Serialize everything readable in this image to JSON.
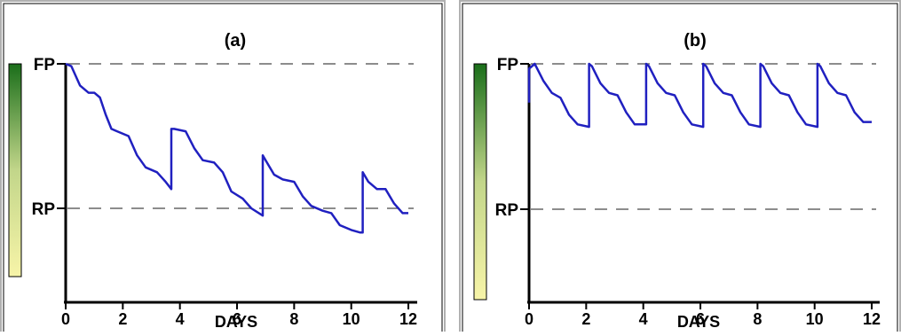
{
  "chart_data": [
    {
      "type": "line",
      "panel_label": "(a)",
      "xlabel": "DAYS",
      "x_ticks": [
        "0",
        "2",
        "4",
        "6",
        "8",
        "10",
        "12"
      ],
      "xlim": [
        0,
        12
      ],
      "ylim": [
        0,
        1.15
      ],
      "reference_lines": [
        {
          "label": "FP",
          "y": 1.0
        },
        {
          "label": "RP",
          "y": 0.4
        }
      ],
      "series": [
        {
          "color": "#2020c0",
          "x": [
            0,
            0.2,
            0.5,
            0.8,
            1.0,
            1.2,
            1.4,
            1.6,
            1.8,
            2.2,
            2.5,
            2.8,
            3.2,
            3.5,
            3.7,
            3.7,
            3.8,
            4.2,
            4.5,
            4.8,
            5.2,
            5.5,
            5.8,
            6.2,
            6.5,
            6.9,
            6.9,
            7.0,
            7.3,
            7.6,
            8.0,
            8.3,
            8.6,
            9.0,
            9.3,
            9.6,
            10.0,
            10.3,
            10.4,
            10.4,
            10.6,
            10.9,
            11.2,
            11.5,
            11.8,
            12.0
          ],
          "y": [
            1.0,
            0.99,
            0.91,
            0.88,
            0.88,
            0.86,
            0.79,
            0.73,
            0.72,
            0.7,
            0.62,
            0.57,
            0.55,
            0.51,
            0.48,
            0.73,
            0.73,
            0.72,
            0.65,
            0.6,
            0.59,
            0.55,
            0.47,
            0.44,
            0.4,
            0.37,
            0.62,
            0.6,
            0.54,
            0.52,
            0.51,
            0.45,
            0.41,
            0.39,
            0.38,
            0.33,
            0.31,
            0.3,
            0.3,
            0.55,
            0.51,
            0.48,
            0.48,
            0.42,
            0.38,
            0.38
          ]
        }
      ]
    },
    {
      "type": "line",
      "panel_label": "(b)",
      "xlabel": "DAYS",
      "x_ticks": [
        "0",
        "2",
        "4",
        "6",
        "8",
        "10",
        "12"
      ],
      "xlim": [
        0,
        12
      ],
      "ylim": [
        0,
        1.15
      ],
      "reference_lines": [
        {
          "label": "FP",
          "y": 1.0
        },
        {
          "label": "RP",
          "y": 0.4
        }
      ],
      "series": [
        {
          "color": "#2020c0",
          "x": [
            0,
            0.0,
            0.2,
            0.5,
            0.8,
            1.1,
            1.4,
            1.7,
            2.1,
            2.1,
            2.2,
            2.5,
            2.8,
            3.1,
            3.4,
            3.7,
            4.1,
            4.1,
            4.2,
            4.5,
            4.8,
            5.1,
            5.4,
            5.7,
            6.1,
            6.1,
            6.2,
            6.5,
            6.8,
            7.1,
            7.4,
            7.7,
            8.1,
            8.1,
            8.2,
            8.5,
            8.8,
            9.1,
            9.4,
            9.7,
            10.1,
            10.1,
            10.2,
            10.5,
            10.8,
            11.1,
            11.4,
            11.7,
            12.0
          ],
          "y": [
            0.84,
            0.98,
            1.0,
            0.93,
            0.88,
            0.86,
            0.79,
            0.75,
            0.74,
            1.0,
            0.99,
            0.92,
            0.88,
            0.87,
            0.8,
            0.75,
            0.75,
            1.0,
            0.99,
            0.92,
            0.88,
            0.87,
            0.8,
            0.75,
            0.74,
            1.0,
            0.99,
            0.92,
            0.88,
            0.87,
            0.8,
            0.75,
            0.74,
            1.0,
            0.99,
            0.92,
            0.88,
            0.87,
            0.8,
            0.75,
            0.74,
            1.0,
            0.99,
            0.92,
            0.88,
            0.87,
            0.8,
            0.76,
            0.76
          ]
        }
      ]
    }
  ]
}
